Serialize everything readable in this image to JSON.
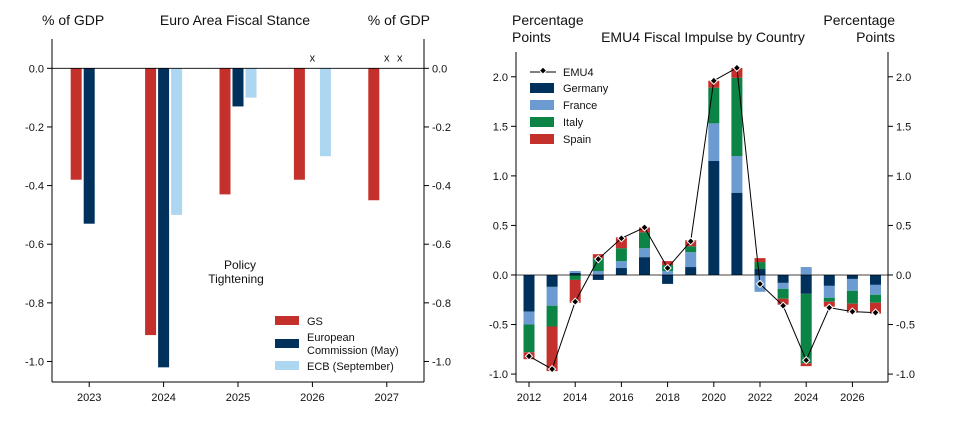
{
  "chart_data": [
    {
      "type": "bar",
      "title": "Euro Area Fiscal Stance",
      "ylabel_left": "% of GDP",
      "ylabel_right": "% of GDP",
      "ylim": [
        -1.07,
        0.1
      ],
      "yticks": [
        0.0,
        -0.2,
        -0.4,
        -0.6,
        -0.8,
        -1.0
      ],
      "ytick_labels": [
        "0.0",
        "-0.2",
        "-0.4",
        "-0.6",
        "-0.8",
        "-1.0"
      ],
      "categories": [
        "2023",
        "2024",
        "2025",
        "2026",
        "2027"
      ],
      "series": [
        {
          "name": "GS",
          "color": "#C4302B",
          "values": [
            -0.38,
            -0.91,
            -0.43,
            -0.38,
            -0.45
          ]
        },
        {
          "name": "European Commission (May)",
          "color": "#00315C",
          "values": [
            -0.53,
            -1.02,
            -0.13,
            null,
            null
          ]
        },
        {
          "name": "ECB (September)",
          "color": "#ADD6F0",
          "values": [
            null,
            -0.5,
            -0.1,
            -0.3,
            null
          ]
        }
      ],
      "markers": [
        {
          "category": "2026",
          "series": "European Commission (May)",
          "label": "x"
        },
        {
          "category": "2027",
          "series": "European Commission (May)",
          "label": "x"
        },
        {
          "category": "2027",
          "series": "ECB (September)",
          "label": "x"
        }
      ],
      "annotation": {
        "line1": "Policy",
        "line2": "Tightening"
      },
      "legend": [
        "GS",
        "European",
        "Commission (May)",
        "ECB (September)"
      ],
      "legend_position": "bottom-right"
    },
    {
      "type": "stacked-bar-line",
      "title": "EMU4 Fiscal Impulse by Country",
      "ylabel_left": {
        "line1": "Percentage",
        "line2": "Points"
      },
      "ylabel_right": {
        "line1": "Percentage",
        "line2": "Points"
      },
      "ylim": [
        -1.08,
        2.25
      ],
      "yticks": [
        2.0,
        1.5,
        1.0,
        0.5,
        0.0,
        -0.5,
        -1.0
      ],
      "ytick_labels": [
        "2.0",
        "1.5",
        "1.0",
        "0.5",
        "0.0",
        "-0.5",
        "-1.0"
      ],
      "x": [
        2012,
        2013,
        2014,
        2015,
        2016,
        2017,
        2018,
        2019,
        2020,
        2021,
        2022,
        2023,
        2024,
        2025,
        2026,
        2027
      ],
      "xtick_labels": [
        "2012",
        "2014",
        "2016",
        "2018",
        "2020",
        "2022",
        "2024",
        "2026"
      ],
      "line": {
        "name": "EMU4",
        "values": [
          -0.82,
          -0.95,
          -0.27,
          0.16,
          0.37,
          0.48,
          0.07,
          0.34,
          1.96,
          2.09,
          -0.09,
          -0.31,
          -0.86,
          -0.33,
          -0.37,
          -0.38
        ]
      },
      "series": [
        {
          "name": "Germany",
          "color": "#00315C",
          "values": [
            -0.37,
            -0.12,
            0.02,
            -0.05,
            0.07,
            0.18,
            -0.09,
            0.08,
            1.15,
            0.83,
            0.06,
            -0.08,
            -0.19,
            -0.11,
            -0.04,
            -0.1
          ]
        },
        {
          "name": "France",
          "color": "#6B9BD0",
          "values": [
            -0.13,
            -0.19,
            0.02,
            0.04,
            0.07,
            0.09,
            0.04,
            0.15,
            0.38,
            0.37,
            -0.17,
            -0.06,
            0.08,
            -0.12,
            -0.12,
            -0.1
          ]
        },
        {
          "name": "Italy",
          "color": "#0B8446",
          "values": [
            -0.28,
            -0.21,
            -0.05,
            0.13,
            0.13,
            0.16,
            0.06,
            0.06,
            0.36,
            0.79,
            0.07,
            -0.1,
            -0.7,
            -0.04,
            -0.13,
            -0.08
          ]
        },
        {
          "name": "Spain",
          "color": "#C4302B",
          "values": [
            -0.07,
            -0.45,
            -0.23,
            0.04,
            0.11,
            0.05,
            0.04,
            0.06,
            0.07,
            0.1,
            0.04,
            -0.06,
            -0.03,
            -0.05,
            -0.09,
            -0.11
          ]
        }
      ],
      "legend": [
        "EMU4",
        "Germany",
        "France",
        "Italy",
        "Spain"
      ],
      "legend_position": "top-left"
    }
  ]
}
